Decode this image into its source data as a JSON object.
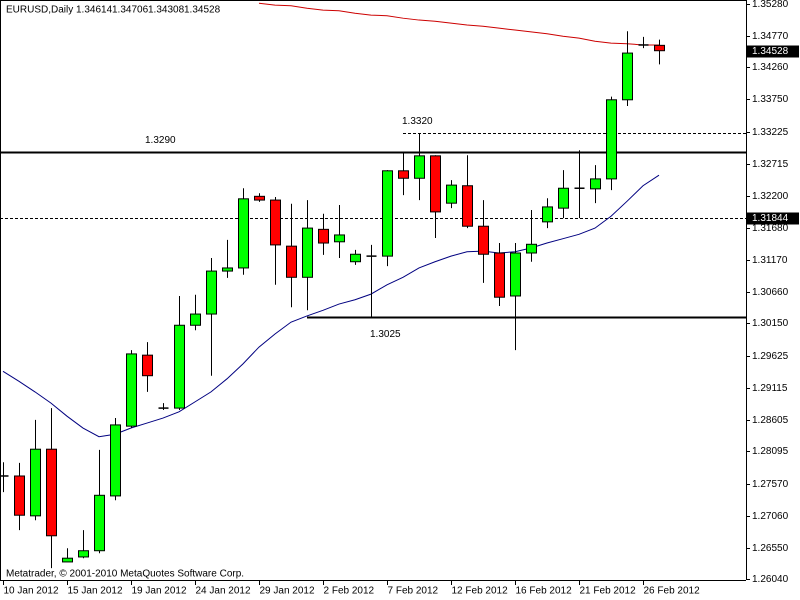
{
  "chart_data": {
    "type": "candlestick",
    "title": "EURUSD,Daily",
    "copyright": "Metatrader, © 2001-2010 MetaQuotes Software Corp.",
    "categories": [
      "10 Jan 2012",
      null,
      null,
      null,
      "15 Jan 2012",
      null,
      null,
      null,
      "19 Jan 2012",
      null,
      null,
      null,
      "24 Jan 2012",
      null,
      null,
      null,
      "29 Jan 2012",
      null,
      null,
      null,
      "2 Feb 2012",
      null,
      null,
      null,
      "7 Feb 2012",
      null,
      null,
      null,
      "12 Feb 2012",
      null,
      null,
      null,
      "16 Feb 2012",
      null,
      null,
      null,
      "21 Feb 2012",
      null,
      null,
      null,
      "26 Feb 2012",
      null
    ],
    "candles": {
      "open": [
        1.277,
        1.277,
        1.2706,
        1.2813,
        1.2632,
        1.264,
        1.265,
        1.2738,
        1.285,
        1.2964,
        1.2879,
        1.2879,
        1.3012,
        1.303,
        1.3099,
        1.3104,
        1.3219,
        1.3213,
        1.3139,
        1.3089,
        1.3166,
        1.3146,
        1.3114,
        1.3123,
        1.3123,
        1.326,
        1.3248,
        1.3284,
        1.3208,
        1.3236,
        1.3171,
        1.3128,
        1.3059,
        1.3128,
        1.3178,
        1.32,
        1.3232,
        1.3231,
        1.3247,
        1.3374,
        1.3462,
        1.34614
      ],
      "high": [
        1.2792,
        1.2791,
        1.286,
        1.2879,
        1.2654,
        1.2683,
        1.2812,
        1.2863,
        1.2972,
        1.2985,
        1.2887,
        1.3059,
        1.3061,
        1.312,
        1.3149,
        1.3232,
        1.3224,
        1.3218,
        1.3207,
        1.3213,
        1.3191,
        1.3205,
        1.3133,
        1.3141,
        1.3261,
        1.3289,
        1.332,
        1.3285,
        1.3245,
        1.3285,
        1.3213,
        1.3144,
        1.3144,
        1.3197,
        1.3216,
        1.3261,
        1.3293,
        1.3269,
        1.3379,
        1.3484,
        1.3475,
        1.34706
      ],
      "low": [
        1.2744,
        1.2683,
        1.2699,
        1.2622,
        1.2632,
        1.2638,
        1.2646,
        1.2731,
        1.2847,
        1.2905,
        1.2876,
        1.2876,
        1.3004,
        1.2931,
        1.3088,
        1.3093,
        1.321,
        1.3077,
        1.3041,
        1.3036,
        1.3125,
        1.312,
        1.3109,
        1.3025,
        1.3107,
        1.3221,
        1.3213,
        1.3152,
        1.32,
        1.3168,
        1.308,
        1.3043,
        1.2972,
        1.3114,
        1.3168,
        1.3184,
        1.3184,
        1.3208,
        1.3229,
        1.3364,
        1.3457,
        1.34308
      ],
      "close": [
        1.277,
        1.2707,
        1.2813,
        1.2674,
        1.2638,
        1.265,
        1.2739,
        1.2852,
        1.2966,
        1.2931,
        1.2879,
        1.3012,
        1.303,
        1.3099,
        1.3104,
        1.3215,
        1.3213,
        1.3141,
        1.3089,
        1.3168,
        1.3144,
        1.3157,
        1.3126,
        1.3123,
        1.326,
        1.3248,
        1.3284,
        1.3194,
        1.3237,
        1.3171,
        1.3126,
        1.3057,
        1.3128,
        1.3142,
        1.3202,
        1.3232,
        1.3232,
        1.3247,
        1.3374,
        1.3449,
        1.3462,
        1.34528
      ]
    },
    "bull_color": "#00ff00",
    "bear_color": "#ff0000",
    "overlays": [
      {
        "color": "#cc0000",
        "values": [
          null,
          null,
          null,
          null,
          null,
          null,
          null,
          null,
          null,
          null,
          null,
          null,
          null,
          null,
          null,
          null,
          1.3529,
          1.3526,
          1.3525,
          1.3521,
          1.3518,
          1.3517,
          1.3513,
          1.351,
          1.3509,
          1.3505,
          1.3502,
          1.35,
          1.3497,
          1.3494,
          1.3492,
          1.3489,
          1.3486,
          1.3483,
          1.348,
          1.3476,
          1.3473,
          1.3468,
          1.3465,
          1.3464,
          1.3462,
          1.3462
        ]
      },
      {
        "color": "#000080",
        "values": [
          1.2938,
          1.2922,
          1.2905,
          1.2887,
          1.2866,
          1.2847,
          1.2833,
          1.2837,
          1.2847,
          1.2855,
          1.2863,
          1.2873,
          1.2889,
          1.2905,
          1.2926,
          1.295,
          1.2977,
          1.2998,
          1.3017,
          1.3027,
          1.3036,
          1.3046,
          1.3053,
          1.3062,
          1.3077,
          1.3089,
          1.3104,
          1.3114,
          1.3123,
          1.313,
          1.3131,
          1.3128,
          1.313,
          1.3136,
          1.3144,
          1.3151,
          1.3158,
          1.3168,
          1.3187,
          1.3211,
          1.3236,
          1.3253
        ]
      }
    ],
    "levels": [
      {
        "value": 1.329,
        "label": "1.3290",
        "style": "solid",
        "start": 0
      },
      {
        "value": 1.332,
        "label": "1.3320",
        "style": "dashed",
        "start": 25
      },
      {
        "value": 1.3025,
        "label": "1.3025",
        "style": "solid",
        "start": 19
      },
      {
        "value": 1.31844,
        "style": "dashed",
        "start": 0
      }
    ],
    "ylim": [
      1.2603,
      1.3531
    ],
    "yticks": [
      {
        "value": 1.3528,
        "label": "1.35280"
      },
      {
        "value": 1.3477,
        "label": "1.34770"
      },
      {
        "value": 1.3426,
        "label": "1.34260"
      },
      {
        "value": 1.3375,
        "label": "1.33750"
      },
      1.33225,
      1.32715,
      {
        "value": 1.322,
        "label": "1.32200"
      },
      {
        "value": 1.3168,
        "label": "1.31680"
      },
      {
        "value": 1.3117,
        "label": "1.31170"
      },
      {
        "value": 1.3066,
        "label": "1.30660"
      },
      {
        "value": 1.3015,
        "label": "1.30150"
      },
      1.29625,
      1.29115,
      1.28605,
      1.28095,
      {
        "value": 1.2757,
        "label": "1.27570"
      },
      {
        "value": 1.2706,
        "label": "1.27060"
      },
      {
        "value": 1.2655,
        "label": "1.26550"
      },
      {
        "value": 1.2604,
        "label": "1.26040"
      }
    ]
  }
}
